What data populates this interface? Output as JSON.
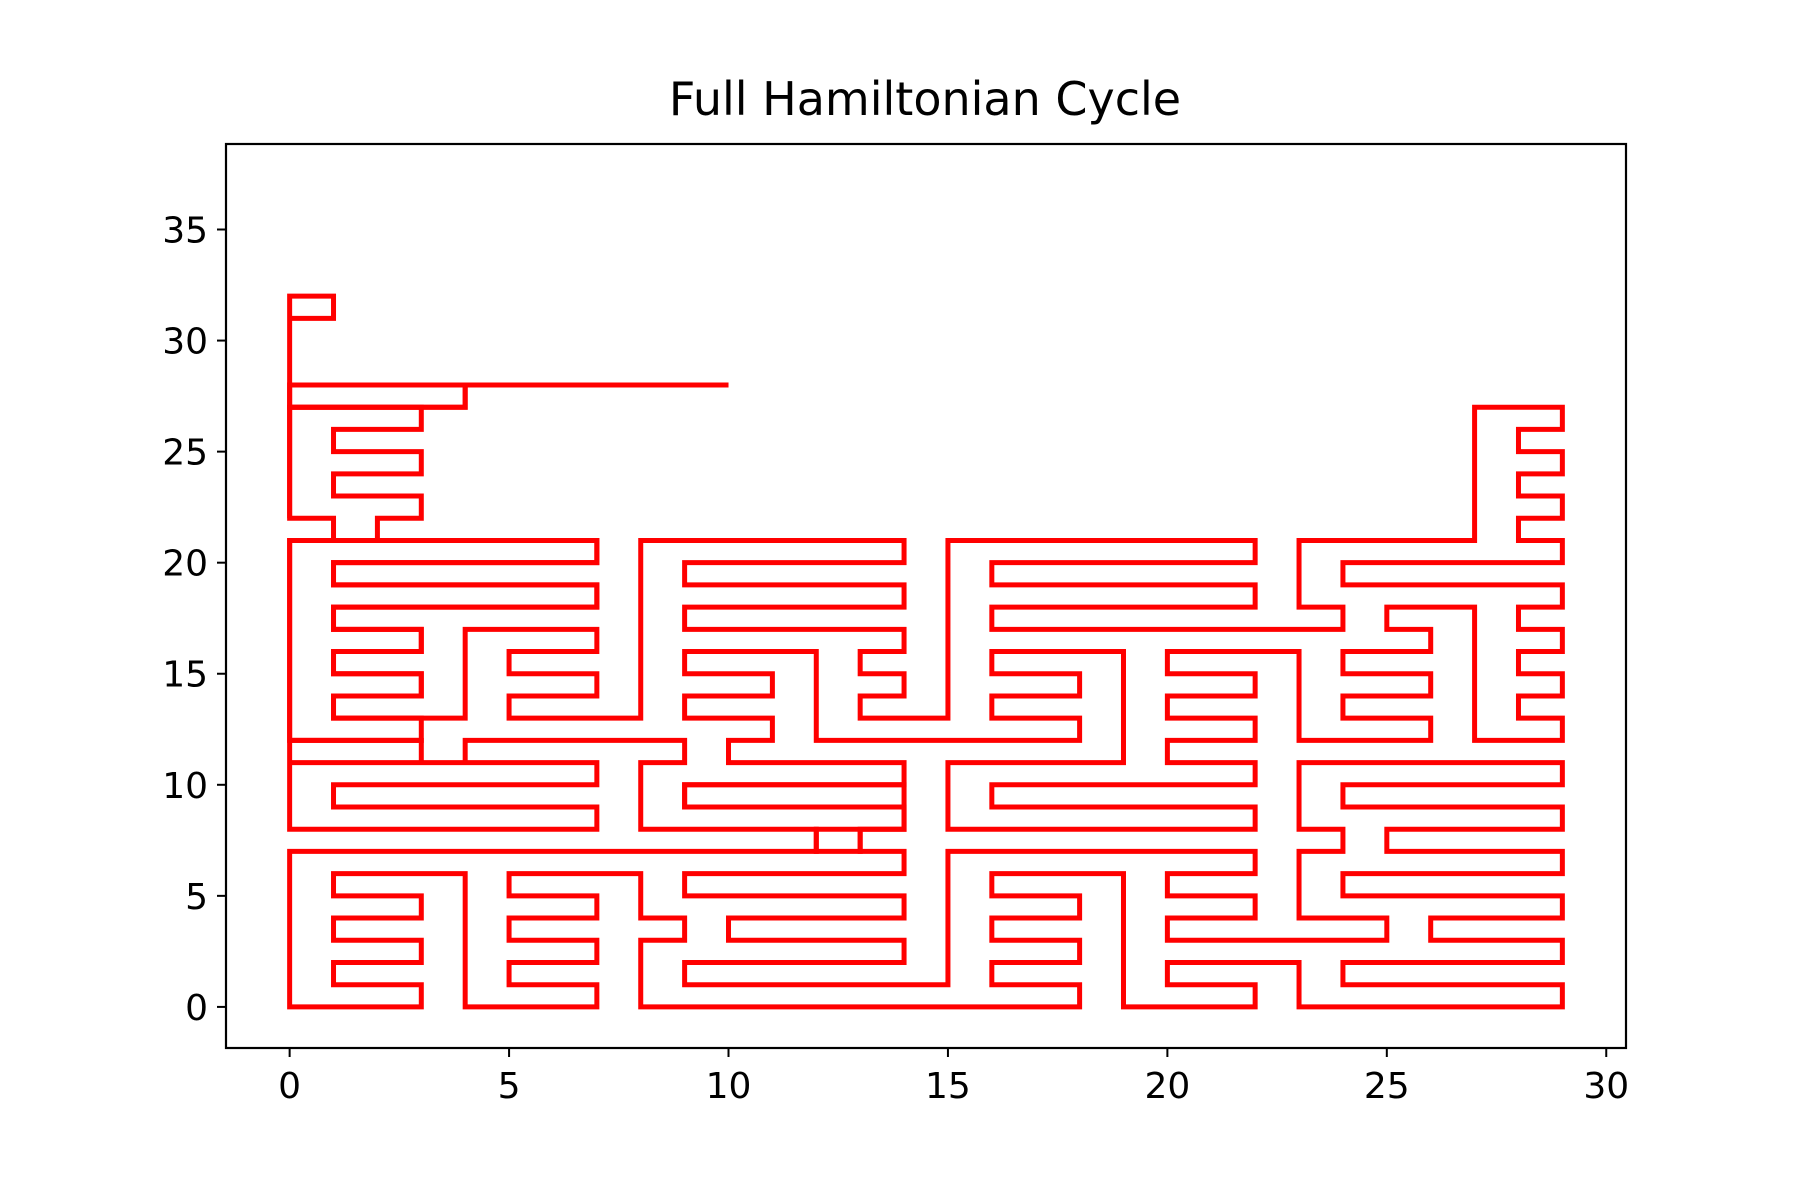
{
  "chart_data": {
    "type": "line",
    "title": "Full Hamiltonian Cycle",
    "xlabel": "",
    "ylabel": "",
    "xlim": [
      -1.45,
      30.45
    ],
    "ylim": [
      -1.85,
      38.85
    ],
    "grid": false,
    "x_ticks": [
      0,
      5,
      10,
      15,
      20,
      25,
      30
    ],
    "y_ticks": [
      0,
      5,
      10,
      15,
      20,
      25,
      30,
      35
    ],
    "series": [
      {
        "color": "#ff0000",
        "closed": true,
        "points": [
          [
            0,
            0
          ],
          [
            3,
            0
          ],
          [
            3,
            1
          ],
          [
            1,
            1
          ],
          [
            1,
            2
          ],
          [
            3,
            2
          ],
          [
            3,
            3
          ],
          [
            1,
            3
          ],
          [
            1,
            4
          ],
          [
            3,
            4
          ],
          [
            3,
            5
          ],
          [
            1,
            5
          ],
          [
            1,
            6
          ],
          [
            4,
            6
          ],
          [
            4,
            0
          ],
          [
            7,
            0
          ],
          [
            7,
            1
          ],
          [
            5,
            1
          ],
          [
            5,
            2
          ],
          [
            7,
            2
          ],
          [
            7,
            3
          ],
          [
            5,
            3
          ],
          [
            5,
            4
          ],
          [
            7,
            4
          ],
          [
            7,
            5
          ],
          [
            5,
            5
          ],
          [
            5,
            6
          ],
          [
            8,
            6
          ],
          [
            8,
            4
          ],
          [
            9,
            4
          ],
          [
            9,
            3
          ],
          [
            8,
            3
          ],
          [
            8,
            0
          ],
          [
            18,
            0
          ],
          [
            18,
            1
          ],
          [
            16,
            1
          ],
          [
            16,
            2
          ],
          [
            18,
            2
          ],
          [
            18,
            3
          ],
          [
            16,
            3
          ],
          [
            16,
            4
          ],
          [
            18,
            4
          ],
          [
            18,
            5
          ],
          [
            16,
            5
          ],
          [
            16,
            6
          ],
          [
            19,
            6
          ],
          [
            19,
            0
          ],
          [
            22,
            0
          ],
          [
            22,
            1
          ],
          [
            20,
            1
          ],
          [
            20,
            2
          ],
          [
            23,
            2
          ],
          [
            23,
            0
          ],
          [
            29,
            0
          ],
          [
            29,
            1
          ],
          [
            24,
            1
          ],
          [
            24,
            2
          ],
          [
            29,
            2
          ],
          [
            29,
            3
          ],
          [
            26,
            3
          ],
          [
            26,
            4
          ],
          [
            29,
            4
          ],
          [
            29,
            5
          ],
          [
            24,
            5
          ],
          [
            24,
            6
          ],
          [
            29,
            6
          ],
          [
            29,
            7
          ],
          [
            25,
            7
          ],
          [
            25,
            8
          ],
          [
            29,
            8
          ],
          [
            29,
            9
          ],
          [
            24,
            9
          ],
          [
            24,
            10
          ],
          [
            29,
            10
          ],
          [
            29,
            11
          ],
          [
            23,
            11
          ],
          [
            23,
            8
          ],
          [
            24,
            8
          ],
          [
            24,
            7
          ],
          [
            23,
            7
          ],
          [
            23,
            4
          ],
          [
            25,
            4
          ],
          [
            25,
            3
          ],
          [
            20,
            3
          ],
          [
            20,
            4
          ],
          [
            22,
            4
          ],
          [
            22,
            5
          ],
          [
            20,
            5
          ],
          [
            20,
            6
          ],
          [
            22,
            6
          ],
          [
            22,
            7
          ],
          [
            15,
            7
          ],
          [
            15,
            1
          ],
          [
            9,
            1
          ],
          [
            9,
            2
          ],
          [
            14,
            2
          ],
          [
            14,
            3
          ],
          [
            10,
            3
          ],
          [
            10,
            4
          ],
          [
            14,
            4
          ],
          [
            14,
            5
          ],
          [
            9,
            5
          ],
          [
            9,
            6
          ],
          [
            14,
            6
          ],
          [
            14,
            7
          ],
          [
            13,
            7
          ],
          [
            13,
            8
          ],
          [
            14,
            8
          ],
          [
            14,
            10
          ],
          [
            9,
            10
          ],
          [
            9,
            9
          ],
          [
            14,
            9
          ],
          [
            14,
            8
          ],
          [
            12,
            8
          ],
          [
            12,
            7
          ],
          [
            0,
            7
          ],
          [
            0,
            0
          ]
        ]
      },
      {
        "color": "#ff0000",
        "closed": true,
        "points": [
          [
            0,
            8
          ],
          [
            7,
            8
          ],
          [
            7,
            9
          ],
          [
            1,
            9
          ],
          [
            1,
            10
          ],
          [
            7,
            10
          ],
          [
            7,
            11
          ],
          [
            0,
            11
          ],
          [
            0,
            12
          ],
          [
            3,
            12
          ],
          [
            3,
            11
          ],
          [
            4,
            11
          ],
          [
            4,
            12
          ],
          [
            9,
            12
          ],
          [
            9,
            11
          ],
          [
            8,
            11
          ],
          [
            8,
            8
          ],
          [
            12,
            8
          ],
          [
            12,
            7
          ],
          [
            13,
            7
          ],
          [
            13,
            8
          ],
          [
            14,
            8
          ],
          [
            14,
            9
          ],
          [
            9,
            9
          ],
          [
            9,
            10
          ],
          [
            14,
            10
          ],
          [
            14,
            11
          ],
          [
            10,
            11
          ],
          [
            10,
            12
          ],
          [
            11,
            12
          ],
          [
            11,
            13
          ],
          [
            9,
            13
          ],
          [
            9,
            14
          ],
          [
            11,
            14
          ],
          [
            11,
            15
          ],
          [
            9,
            15
          ],
          [
            9,
            16
          ],
          [
            12,
            16
          ],
          [
            12,
            12
          ],
          [
            18,
            12
          ],
          [
            18,
            13
          ],
          [
            16,
            13
          ],
          [
            16,
            14
          ],
          [
            18,
            14
          ],
          [
            18,
            15
          ],
          [
            16,
            15
          ],
          [
            16,
            16
          ],
          [
            19,
            16
          ],
          [
            19,
            11
          ],
          [
            15,
            11
          ],
          [
            15,
            8
          ],
          [
            22,
            8
          ],
          [
            22,
            9
          ],
          [
            16,
            9
          ],
          [
            16,
            10
          ],
          [
            22,
            10
          ],
          [
            22,
            11
          ],
          [
            20,
            11
          ],
          [
            20,
            12
          ],
          [
            22,
            12
          ],
          [
            22,
            13
          ],
          [
            20,
            13
          ],
          [
            20,
            14
          ],
          [
            22,
            14
          ],
          [
            22,
            15
          ],
          [
            20,
            15
          ],
          [
            20,
            16
          ],
          [
            23,
            16
          ],
          [
            23,
            12
          ],
          [
            26,
            12
          ],
          [
            26,
            13
          ],
          [
            24,
            13
          ],
          [
            24,
            14
          ],
          [
            26,
            14
          ],
          [
            26,
            15
          ],
          [
            24,
            15
          ],
          [
            24,
            16
          ],
          [
            26,
            16
          ],
          [
            26,
            17
          ],
          [
            25,
            17
          ],
          [
            25,
            18
          ],
          [
            27,
            18
          ],
          [
            27,
            12
          ],
          [
            29,
            12
          ],
          [
            29,
            13
          ],
          [
            28,
            13
          ],
          [
            28,
            14
          ],
          [
            29,
            14
          ],
          [
            29,
            15
          ],
          [
            28,
            15
          ],
          [
            28,
            16
          ],
          [
            29,
            16
          ],
          [
            29,
            17
          ],
          [
            28,
            17
          ],
          [
            28,
            18
          ],
          [
            29,
            18
          ],
          [
            29,
            19
          ],
          [
            24,
            19
          ],
          [
            24,
            20
          ],
          [
            29,
            20
          ],
          [
            29,
            21
          ],
          [
            28,
            21
          ],
          [
            28,
            22
          ],
          [
            29,
            22
          ],
          [
            29,
            23
          ],
          [
            28,
            23
          ],
          [
            28,
            24
          ],
          [
            29,
            24
          ],
          [
            29,
            25
          ],
          [
            28,
            25
          ],
          [
            28,
            26
          ],
          [
            29,
            26
          ],
          [
            29,
            27
          ],
          [
            27,
            27
          ],
          [
            27,
            21
          ],
          [
            23,
            21
          ],
          [
            23,
            18
          ],
          [
            24,
            18
          ],
          [
            24,
            17
          ],
          [
            16,
            17
          ],
          [
            16,
            18
          ],
          [
            22,
            18
          ],
          [
            22,
            19
          ],
          [
            16,
            19
          ],
          [
            16,
            20
          ],
          [
            22,
            20
          ],
          [
            22,
            21
          ],
          [
            15,
            21
          ],
          [
            15,
            13
          ],
          [
            13,
            13
          ],
          [
            13,
            14
          ],
          [
            14,
            14
          ],
          [
            14,
            15
          ],
          [
            13,
            15
          ],
          [
            13,
            16
          ],
          [
            14,
            16
          ],
          [
            14,
            17
          ],
          [
            9,
            17
          ],
          [
            9,
            18
          ],
          [
            14,
            18
          ],
          [
            14,
            19
          ],
          [
            9,
            19
          ],
          [
            9,
            20
          ],
          [
            14,
            20
          ],
          [
            14,
            21
          ],
          [
            8,
            21
          ],
          [
            8,
            13
          ],
          [
            5,
            13
          ],
          [
            5,
            14
          ],
          [
            7,
            14
          ],
          [
            7,
            15
          ],
          [
            5,
            15
          ],
          [
            5,
            16
          ],
          [
            7,
            16
          ],
          [
            7,
            17
          ],
          [
            4,
            17
          ],
          [
            4,
            13
          ],
          [
            1,
            13
          ],
          [
            1,
            14
          ],
          [
            3,
            14
          ],
          [
            3,
            15
          ],
          [
            1,
            15
          ],
          [
            1,
            16
          ],
          [
            3,
            16
          ],
          [
            3,
            17
          ],
          [
            1,
            17
          ],
          [
            1,
            18
          ],
          [
            7,
            18
          ],
          [
            7,
            19
          ],
          [
            1,
            19
          ],
          [
            1,
            20
          ],
          [
            7,
            20
          ],
          [
            7,
            21
          ],
          [
            0,
            21
          ],
          [
            0,
            8
          ]
        ]
      },
      {
        "color": "#ff0000",
        "closed": true,
        "points": [
          [
            0,
            22
          ],
          [
            1,
            22
          ],
          [
            1,
            21
          ],
          [
            0,
            21
          ],
          [
            0,
            12
          ],
          [
            3,
            12
          ],
          [
            3,
            13
          ],
          [
            1,
            13
          ],
          [
            1,
            14
          ],
          [
            3,
            14
          ],
          [
            3,
            15
          ],
          [
            1,
            15
          ],
          [
            1,
            16
          ],
          [
            3,
            16
          ],
          [
            3,
            17
          ],
          [
            1,
            17
          ],
          [
            1,
            18
          ],
          [
            7,
            18
          ],
          [
            7,
            19
          ],
          [
            1,
            19
          ],
          [
            1,
            20
          ],
          [
            7,
            20
          ],
          [
            7,
            21
          ],
          [
            2,
            21
          ],
          [
            2,
            22
          ],
          [
            3,
            22
          ],
          [
            3,
            23
          ],
          [
            1,
            23
          ],
          [
            1,
            24
          ],
          [
            3,
            24
          ],
          [
            3,
            25
          ],
          [
            1,
            25
          ],
          [
            1,
            26
          ],
          [
            3,
            26
          ],
          [
            3,
            27
          ],
          [
            0,
            27
          ],
          [
            0,
            22
          ]
        ]
      },
      {
        "color": "#ff0000",
        "closed": true,
        "points": [
          [
            0,
            28
          ],
          [
            10,
            28
          ],
          [
            4,
            28
          ],
          [
            4,
            27
          ],
          [
            0,
            27
          ]
        ]
      },
      {
        "color": "#ff0000",
        "closed": true,
        "points": [
          [
            0,
            32
          ],
          [
            1,
            32
          ],
          [
            1,
            31
          ],
          [
            0,
            31
          ],
          [
            0,
            28
          ],
          [
            10,
            28
          ],
          [
            4,
            28
          ],
          [
            4,
            27
          ],
          [
            0,
            27
          ],
          [
            0,
            22
          ]
        ]
      }
    ]
  }
}
